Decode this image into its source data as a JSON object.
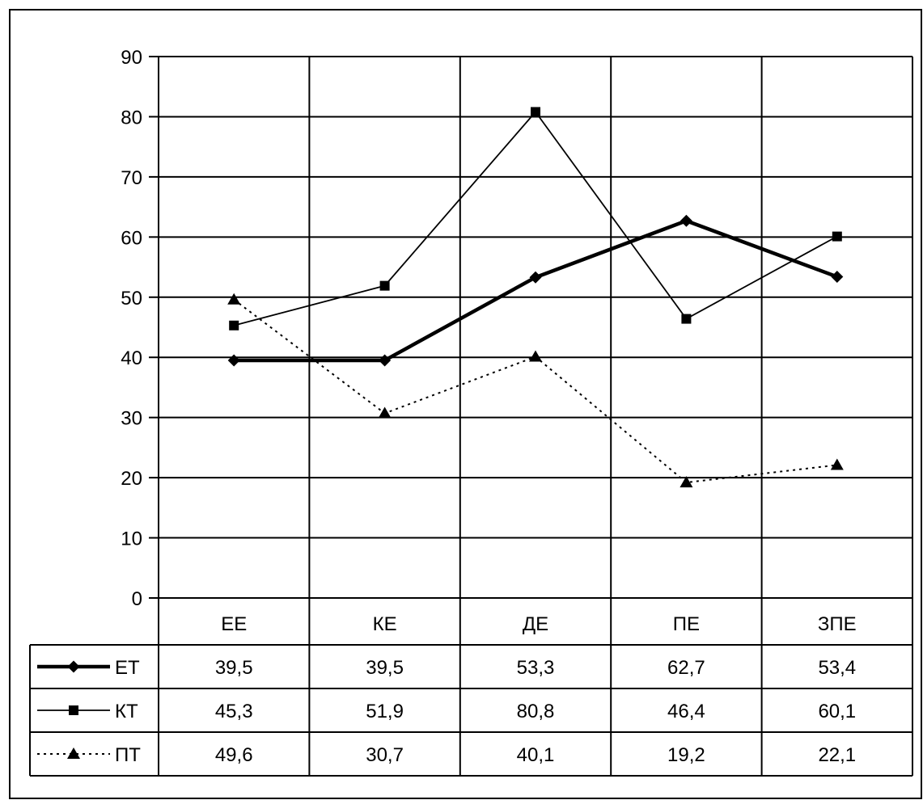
{
  "chart_data": {
    "type": "line",
    "categories": [
      "ЕЕ",
      "КЕ",
      "ДЕ",
      "ПЕ",
      "ЗПЕ"
    ],
    "ylim": [
      0,
      90
    ],
    "yticks": [
      0,
      10,
      20,
      30,
      40,
      50,
      60,
      70,
      80,
      90
    ],
    "grid": true,
    "legend": "data-table-below",
    "series": [
      {
        "name": "ЕТ",
        "values": [
          39.5,
          39.5,
          53.3,
          62.7,
          53.4
        ],
        "labels": [
          "39,5",
          "39,5",
          "53,3",
          "62,7",
          "53,4"
        ],
        "marker": "diamond",
        "line": "solid-thick",
        "color": "#000000"
      },
      {
        "name": "КТ",
        "values": [
          45.3,
          51.9,
          80.8,
          46.4,
          60.1
        ],
        "labels": [
          "45,3",
          "51,9",
          "80,8",
          "46,4",
          "60,1"
        ],
        "marker": "square",
        "line": "solid-thin",
        "color": "#000000"
      },
      {
        "name": "ПТ",
        "values": [
          49.6,
          30.7,
          40.1,
          19.2,
          22.1
        ],
        "labels": [
          "49,6",
          "30,7",
          "40,1",
          "19,2",
          "22,1"
        ],
        "marker": "triangle",
        "line": "dotted",
        "color": "#000000"
      }
    ]
  }
}
